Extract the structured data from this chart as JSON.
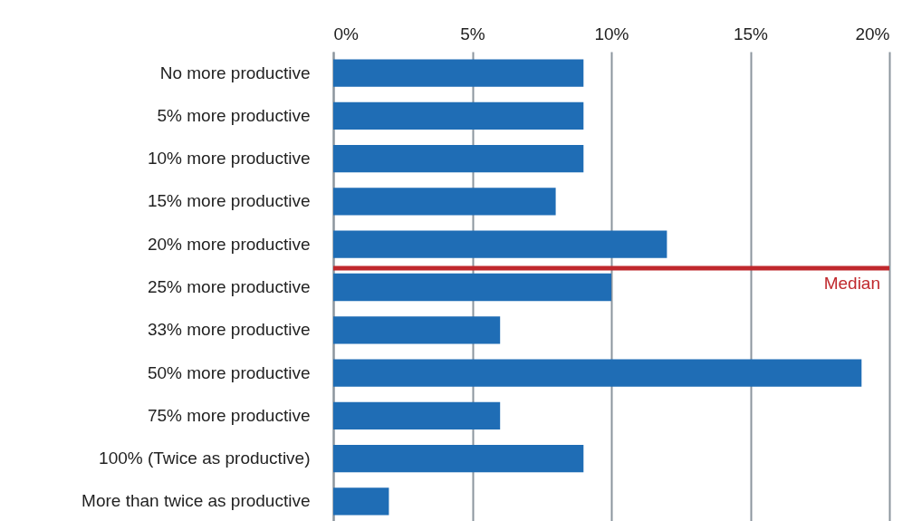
{
  "chart_data": {
    "type": "bar",
    "orientation": "horizontal",
    "categories": [
      "No more productive",
      "5% more productive",
      "10% more productive",
      "15% more productive",
      "20% more productive",
      "25% more productive",
      "33% more productive",
      "50% more productive",
      "75% more productive",
      "100% (Twice as productive)",
      "More than twice as productive"
    ],
    "values": [
      9,
      9,
      9,
      8,
      12,
      10,
      6,
      19,
      6,
      9,
      2
    ],
    "color": "#1f6db5",
    "xlim": [
      0,
      20
    ],
    "xticks": [
      {
        "value": 0,
        "label": "0%"
      },
      {
        "value": 5,
        "label": "5%"
      },
      {
        "value": 10,
        "label": "10%"
      },
      {
        "value": 15,
        "label": "15%"
      },
      {
        "value": 20,
        "label": "20%"
      }
    ],
    "grid": "x",
    "ref_lines": [
      {
        "axis": "y",
        "value": "25% more productive",
        "label": "Median",
        "color": "#c0282d"
      }
    ]
  }
}
